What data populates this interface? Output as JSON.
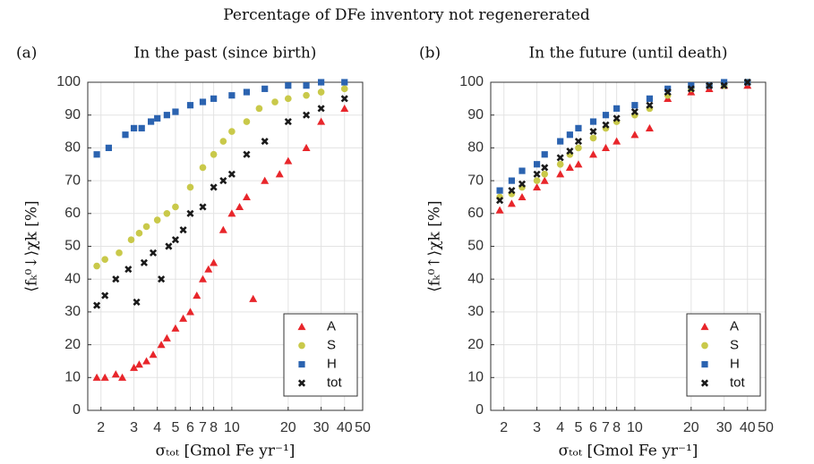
{
  "title": "Percentage of DFe inventory not regenererated",
  "chart_data": [
    {
      "type": "scatter",
      "panel": "(a)",
      "title": "In the past (since birth)",
      "xlabel": "σₜₒₜ [Gmol Fe yr⁻¹]",
      "ylabel": "⟨fₖ⁰↓⟩χk [%]",
      "xscale": "log",
      "xlim": [
        1.7,
        50
      ],
      "xticks": [
        2,
        3,
        4,
        5,
        6,
        7,
        8,
        10,
        20,
        30,
        40,
        50
      ],
      "ylim": [
        0,
        100
      ],
      "yticks": [
        0,
        10,
        20,
        30,
        40,
        50,
        60,
        70,
        80,
        90,
        100
      ],
      "grid": true,
      "legend": "lower right",
      "series": [
        {
          "name": "A",
          "color": "#e8262b",
          "marker": "triangle",
          "x": [
            1.9,
            2.1,
            2.4,
            2.6,
            3.0,
            3.2,
            3.5,
            3.8,
            4.2,
            4.5,
            5,
            5.5,
            6,
            6.5,
            7,
            7.5,
            8,
            9,
            10,
            11,
            12,
            13,
            15,
            18,
            20,
            25,
            30,
            40
          ],
          "values": [
            10,
            10,
            11,
            10,
            13,
            14,
            15,
            17,
            20,
            22,
            25,
            28,
            30,
            35,
            40,
            43,
            45,
            55,
            60,
            62,
            65,
            34,
            70,
            72,
            76,
            80,
            88,
            92
          ]
        },
        {
          "name": "S",
          "color": "#c9c94a",
          "marker": "circle",
          "x": [
            1.9,
            2.1,
            2.5,
            2.9,
            3.2,
            3.5,
            4,
            4.5,
            5,
            6,
            7,
            8,
            9,
            10,
            12,
            14,
            17,
            20,
            25,
            30,
            40
          ],
          "values": [
            44,
            46,
            48,
            52,
            54,
            56,
            58,
            60,
            62,
            68,
            74,
            78,
            82,
            85,
            88,
            92,
            94,
            95,
            96,
            97,
            98
          ]
        },
        {
          "name": "H",
          "color": "#2b63b0",
          "marker": "square",
          "x": [
            1.9,
            2.2,
            2.7,
            3.0,
            3.3,
            3.7,
            4,
            4.5,
            5,
            6,
            7,
            8,
            10,
            12,
            15,
            20,
            25,
            30,
            40
          ],
          "values": [
            78,
            80,
            84,
            86,
            86,
            88,
            89,
            90,
            91,
            93,
            94,
            95,
            96,
            97,
            98,
            99,
            99,
            100,
            100
          ]
        },
        {
          "name": "tot",
          "color": "#1a1a1a",
          "marker": "x",
          "x": [
            1.9,
            2.1,
            2.4,
            2.8,
            3.1,
            3.4,
            3.8,
            4.2,
            4.6,
            5,
            5.5,
            6,
            7,
            8,
            9,
            10,
            12,
            15,
            20,
            25,
            30,
            40
          ],
          "values": [
            32,
            35,
            40,
            43,
            33,
            45,
            48,
            40,
            50,
            52,
            55,
            60,
            62,
            68,
            70,
            72,
            78,
            82,
            88,
            90,
            92,
            95
          ]
        }
      ]
    },
    {
      "type": "scatter",
      "panel": "(b)",
      "title": "In the future (until death)",
      "xlabel": "σₜₒₜ [Gmol Fe yr⁻¹]",
      "ylabel": "⟨fₖ⁰↑⟩χk [%]",
      "xscale": "log",
      "xlim": [
        1.7,
        50
      ],
      "xticks": [
        2,
        3,
        4,
        5,
        6,
        7,
        8,
        10,
        20,
        30,
        40,
        50
      ],
      "ylim": [
        0,
        100
      ],
      "yticks": [
        0,
        10,
        20,
        30,
        40,
        50,
        60,
        70,
        80,
        90,
        100
      ],
      "grid": true,
      "legend": "lower right",
      "series": [
        {
          "name": "A",
          "color": "#e8262b",
          "marker": "triangle",
          "x": [
            1.9,
            2.2,
            2.5,
            3,
            3.3,
            4,
            4.5,
            5,
            6,
            7,
            8,
            10,
            12,
            15,
            20,
            25,
            30,
            40
          ],
          "values": [
            61,
            63,
            65,
            68,
            70,
            72,
            74,
            75,
            78,
            80,
            82,
            84,
            86,
            95,
            97,
            98,
            99,
            99
          ]
        },
        {
          "name": "S",
          "color": "#c9c94a",
          "marker": "circle",
          "x": [
            1.9,
            2.2,
            2.5,
            3,
            3.3,
            4,
            4.5,
            5,
            6,
            7,
            8,
            10,
            12,
            15,
            20,
            25,
            30,
            40
          ],
          "values": [
            65,
            66,
            68,
            70,
            72,
            75,
            78,
            80,
            83,
            86,
            88,
            90,
            92,
            96,
            98,
            99,
            99,
            100
          ]
        },
        {
          "name": "H",
          "color": "#2b63b0",
          "marker": "square",
          "x": [
            1.9,
            2.2,
            2.5,
            3,
            3.3,
            4,
            4.5,
            5,
            6,
            7,
            8,
            10,
            12,
            15,
            20,
            25,
            30,
            40
          ],
          "values": [
            67,
            70,
            73,
            75,
            78,
            82,
            84,
            86,
            88,
            90,
            92,
            93,
            95,
            98,
            99,
            99,
            100,
            100
          ]
        },
        {
          "name": "tot",
          "color": "#1a1a1a",
          "marker": "x",
          "x": [
            1.9,
            2.2,
            2.5,
            3,
            3.3,
            4,
            4.5,
            5,
            6,
            7,
            8,
            10,
            12,
            15,
            20,
            25,
            30,
            40
          ],
          "values": [
            64,
            67,
            69,
            72,
            74,
            77,
            79,
            82,
            85,
            87,
            89,
            91,
            93,
            97,
            98,
            99,
            99,
            100
          ]
        }
      ]
    }
  ]
}
